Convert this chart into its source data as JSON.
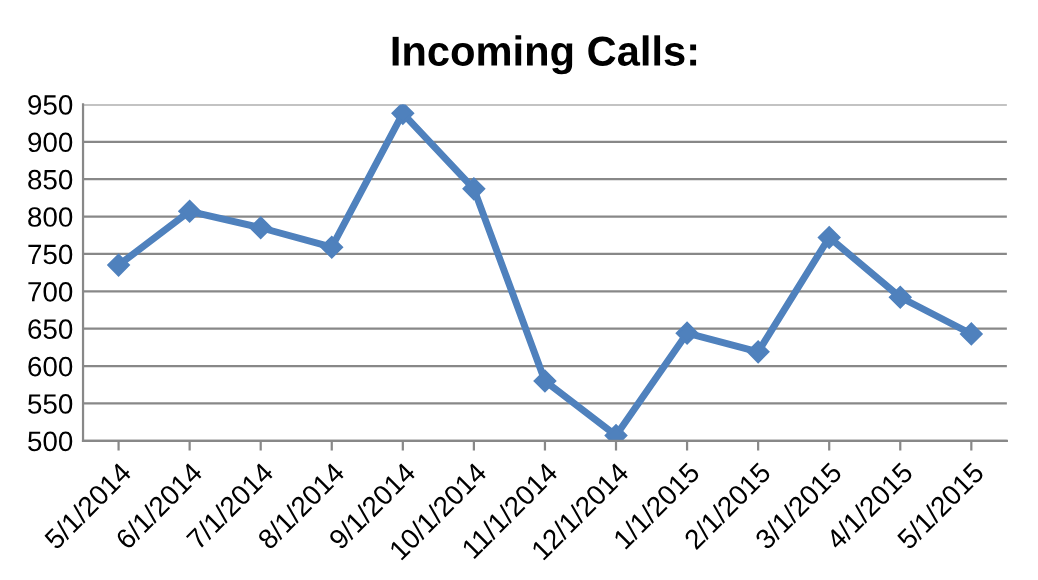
{
  "chart_data": {
    "type": "line",
    "title": "Incoming Calls:",
    "categories": [
      "5/1/2014",
      "6/1/2014",
      "7/1/2014",
      "8/1/2014",
      "9/1/2014",
      "10/1/2014",
      "11/1/2014",
      "12/1/2014",
      "1/1/2015",
      "2/1/2015",
      "3/1/2015",
      "4/1/2015",
      "5/1/2015"
    ],
    "series": [
      {
        "color": "#4f81bd",
        "values": [
          735,
          807,
          785,
          759,
          938,
          837,
          580,
          507,
          644,
          619,
          772,
          692,
          643
        ]
      }
    ],
    "ylim": [
      500,
      950
    ],
    "yticks": [
      500,
      550,
      600,
      650,
      700,
      750,
      800,
      850,
      900,
      950
    ],
    "grid": "y",
    "marker": "diamond",
    "line_style": "solid",
    "legend": false
  }
}
